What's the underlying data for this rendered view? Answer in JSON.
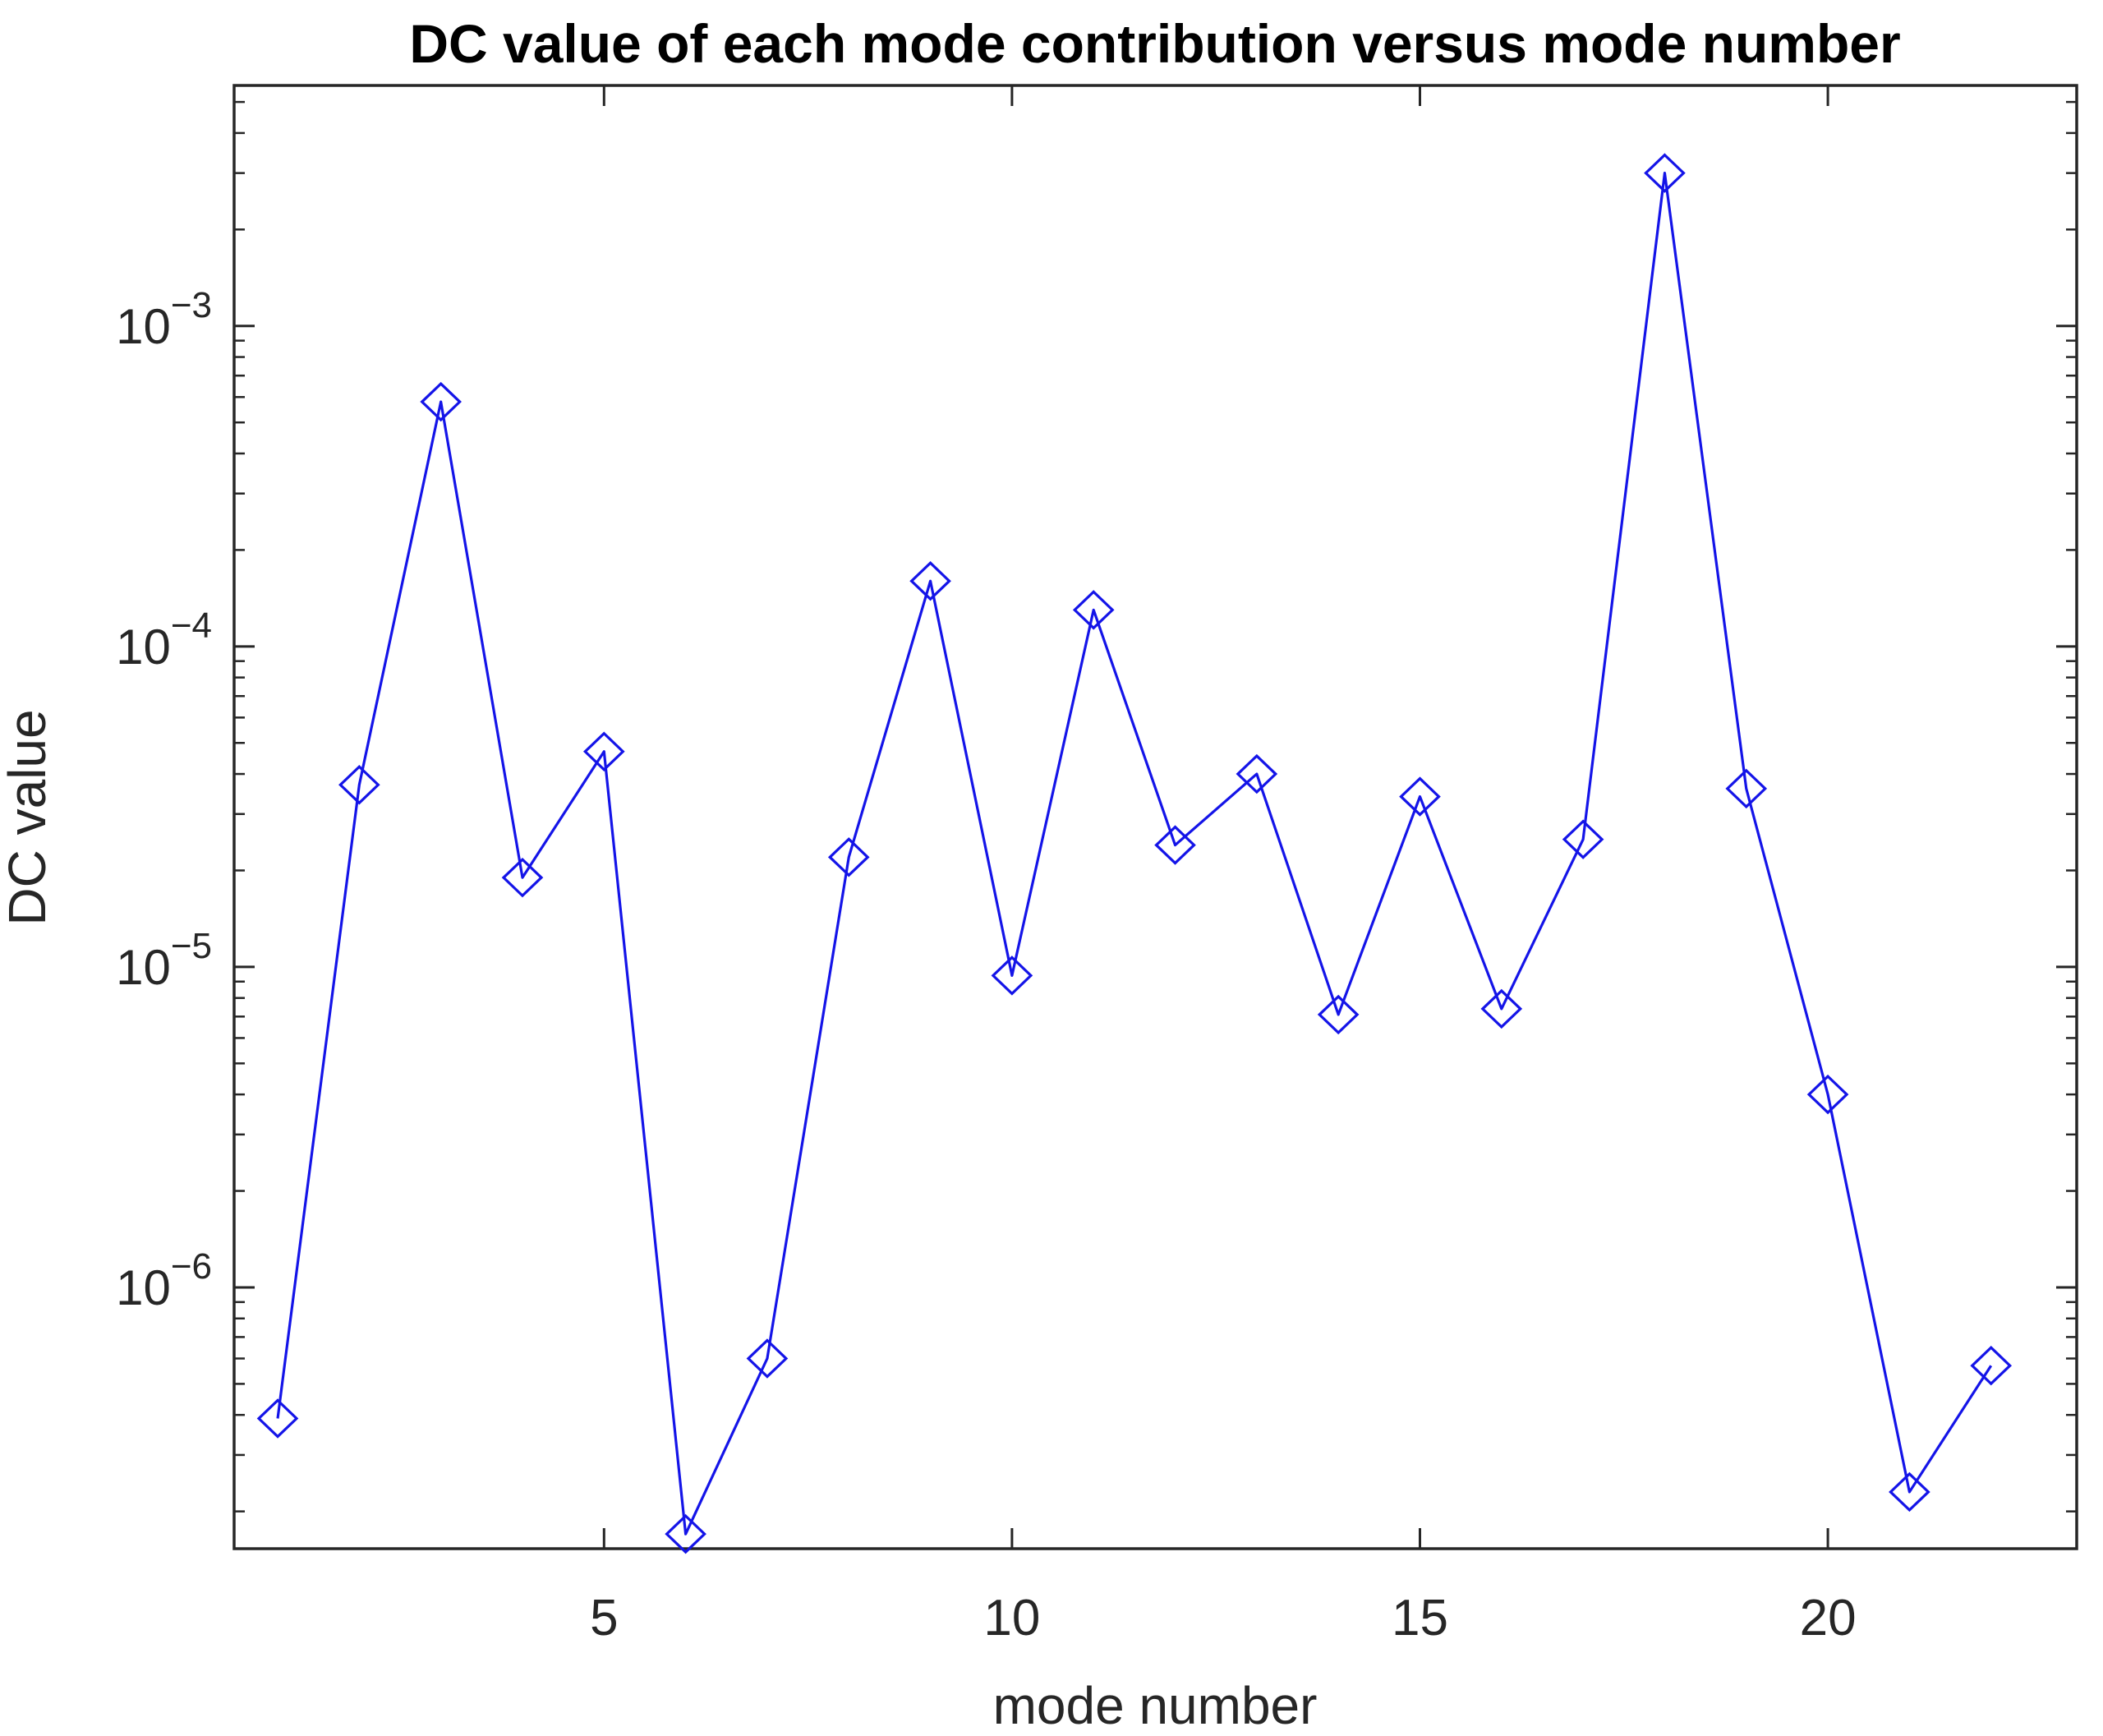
{
  "chart_data": {
    "type": "line",
    "title": "DC value of each mode contribution versus mode number",
    "xlabel": "mode number",
    "ylabel": "DC value",
    "y_scale": "log",
    "grid": false,
    "legend": "none",
    "marker": "open-diamond",
    "line_color": "#1414e8",
    "axis_color": "#262626",
    "title_color": "#000000",
    "x": [
      1,
      2,
      3,
      4,
      5,
      6,
      7,
      8,
      9,
      10,
      11,
      12,
      13,
      14,
      15,
      16,
      17,
      18,
      19,
      20,
      21,
      22
    ],
    "values": [
      3.9e-07,
      3.7e-05,
      0.00058,
      1.9e-05,
      4.7e-05,
      1.7e-07,
      6e-07,
      2.2e-05,
      0.00016,
      9.4e-06,
      0.00013,
      2.4e-05,
      4e-05,
      7.1e-06,
      3.4e-05,
      7.4e-06,
      2.5e-05,
      0.003,
      3.6e-05,
      4e-06,
      2.3e-07,
      5.7e-07
    ],
    "x_ticks": [
      5,
      10,
      15,
      20
    ],
    "y_tick_exponents": [
      -3,
      -4,
      -5,
      -6
    ],
    "y_tick_base": "10",
    "xlim": [
      0.466,
      23.05
    ],
    "ylim": [
      1.53e-07,
      0.00563
    ]
  }
}
